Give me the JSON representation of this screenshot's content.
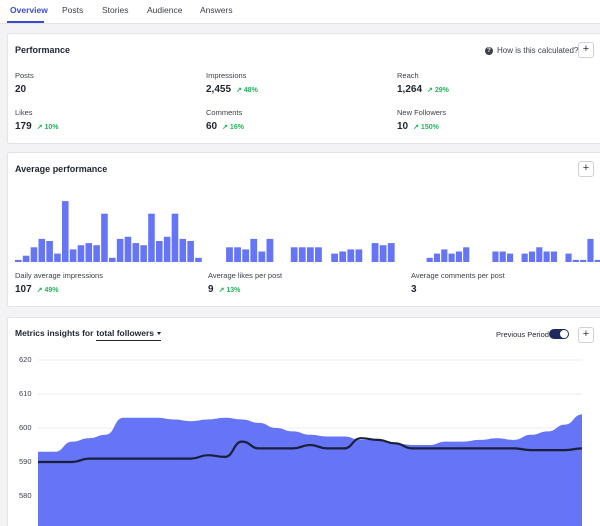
{
  "tabs": [
    "Overview",
    "Posts",
    "Stories",
    "Audience",
    "Answers"
  ],
  "performance": {
    "title": "Performance",
    "help": "How is this calculated?",
    "plus": "+",
    "metrics": [
      {
        "label": "Posts",
        "value": "20",
        "change": ""
      },
      {
        "label": "Impressions",
        "value": "2,455",
        "change": "↗ 48%"
      },
      {
        "label": "Reach",
        "value": "1,264",
        "change": "↗ 29%"
      },
      {
        "label": "Likes",
        "value": "179",
        "change": "↗ 10%"
      },
      {
        "label": "Comments",
        "value": "60",
        "change": "↗ 16%"
      },
      {
        "label": "New Followers",
        "value": "10",
        "change": "↗ 150%"
      }
    ]
  },
  "average": {
    "title": "Average performance",
    "plus": "+",
    "items": [
      {
        "label": "Daily average impressions",
        "value": "107",
        "change": "↗ 49%"
      },
      {
        "label": "Average likes per post",
        "value": "9",
        "change": "↗ 13%"
      },
      {
        "label": "Average comments per post",
        "value": "3",
        "change": ""
      }
    ]
  },
  "insights": {
    "title_prefix": "Metrics insights for",
    "dropdown": "total followers",
    "toggle_label": "Previous Period",
    "toggle_on": true,
    "plus": "+"
  },
  "colors": {
    "accent": "#6575f5",
    "line": "#1a1f3b",
    "positive": "#21b35a",
    "tab_active": "#3b4bd8"
  },
  "chart_data": [
    {
      "type": "bar",
      "title": "",
      "values": [
        1,
        3,
        7,
        11,
        10,
        4,
        29,
        6,
        8,
        9,
        8,
        23,
        2,
        11,
        12,
        9,
        8,
        23,
        10,
        12,
        23,
        11,
        10,
        2
      ]
    },
    {
      "type": "bar",
      "title": "",
      "values": [
        0,
        7,
        7,
        6,
        11,
        5,
        11,
        0,
        0,
        7,
        7,
        7,
        7,
        0,
        4,
        5,
        6,
        6,
        0,
        9,
        8,
        9,
        0
      ]
    },
    {
      "type": "bar",
      "title": "",
      "values": [
        0,
        0,
        2,
        4,
        6,
        4,
        5,
        7,
        0,
        0,
        0,
        5,
        5,
        4,
        0,
        4,
        5,
        7,
        5,
        5,
        0,
        4,
        1,
        1,
        11,
        1
      ]
    },
    {
      "type": "area",
      "title": "",
      "yticks": [
        "620",
        "610",
        "600",
        "590",
        "580"
      ],
      "ylim": [
        575,
        622
      ],
      "series": [
        {
          "values": [
            593,
            593,
            596,
            597,
            598,
            603,
            603,
            603,
            602.5,
            602,
            602.5,
            603,
            602.5,
            601.5,
            600,
            599,
            598,
            597.5,
            597.5,
            596.5,
            596.5,
            595.5,
            595,
            595,
            596,
            596,
            596.5,
            597,
            596.5,
            598,
            599,
            601,
            604
          ]
        },
        {
          "values": [
            590,
            590,
            590,
            591,
            591,
            591,
            591,
            591,
            591,
            591,
            592,
            591.5,
            596,
            594,
            594,
            594,
            595,
            594,
            594,
            597,
            596.5,
            595.5,
            594,
            594,
            594,
            594,
            594,
            594,
            594,
            593.5,
            593.5,
            593.5,
            594
          ]
        }
      ]
    }
  ]
}
